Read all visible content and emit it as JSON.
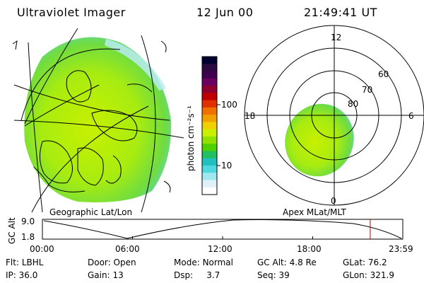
{
  "header": {
    "title": "Ultraviolet Imager",
    "date": "12 Jun 00",
    "time": "21:49:41 UT"
  },
  "colorbar": {
    "label": "photon cm⁻²s⁻¹",
    "ticks": [
      {
        "value": 100,
        "label": "100"
      },
      {
        "value": 10,
        "label": "10"
      }
    ],
    "colors": [
      "#000030",
      "#2a0a40",
      "#400050",
      "#6a0060",
      "#900030",
      "#c00000",
      "#e03000",
      "#f07000",
      "#f0a000",
      "#f0d000",
      "#c8f000",
      "#90e000",
      "#50d000",
      "#20c060",
      "#20c0c0",
      "#50d8e0",
      "#a0e8f0",
      "#e0f0f8",
      "#ffffff"
    ]
  },
  "left_panel": {
    "caption": "Geographic Lat/Lon"
  },
  "right_panel": {
    "caption": "Apex MLat/MLT",
    "mlt_labels": {
      "top": "12",
      "left": "18",
      "right": "6",
      "bottom": "0"
    },
    "lat_labels": [
      "60",
      "70",
      "80"
    ]
  },
  "timeline": {
    "ylabel": "GC Alt",
    "y_ticks": [
      "9.0",
      "1.8"
    ],
    "x_ticks": [
      "00:00",
      "06:00",
      "12:00",
      "18:00",
      "23:59"
    ],
    "current_marker_hours": 21.83
  },
  "info": {
    "row1": [
      {
        "label": "Flt:",
        "value": "LBHL"
      },
      {
        "label": "Door:",
        "value": "Open"
      },
      {
        "label": "Mode:",
        "value": "Normal"
      },
      {
        "label": "GC Alt:",
        "value": "4.8 Re"
      },
      {
        "label": "GLat:",
        "value": "76.2"
      }
    ],
    "row2": [
      {
        "label": "IP:",
        "value": "36.0"
      },
      {
        "label": "Gain:",
        "value": "13"
      },
      {
        "label": "Dsp:",
        "value": "3.7"
      },
      {
        "label": "Seq:",
        "value": "39"
      },
      {
        "label": "GLon:",
        "value": "321.9"
      }
    ]
  }
}
